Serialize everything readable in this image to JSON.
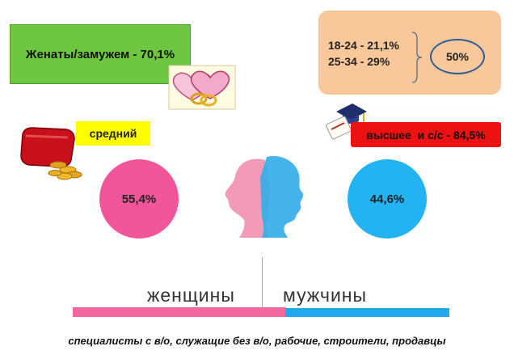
{
  "marital_status": "Женаты/замужем - 70,1%",
  "age": {
    "line_1": "18-24 - 21,1%",
    "line_2": "25-34 - 29%",
    "total": "50%"
  },
  "income": "средний",
  "education": "высшее  и с/с - 84,5%",
  "women": {
    "share": "55,4%",
    "label": "женщины",
    "color": "#f2569a"
  },
  "men": {
    "share": "44,6%",
    "label": "мужчины",
    "color": "#23b3f2"
  },
  "occupations": "специалисты с в/о, служащие без в/о, рабочие, строители, продавцы",
  "icons": [
    "hearts-rings-icon",
    "wallet-coins-icon",
    "graduation-cap-diploma-icon",
    "head-silhouettes-icon"
  ]
}
